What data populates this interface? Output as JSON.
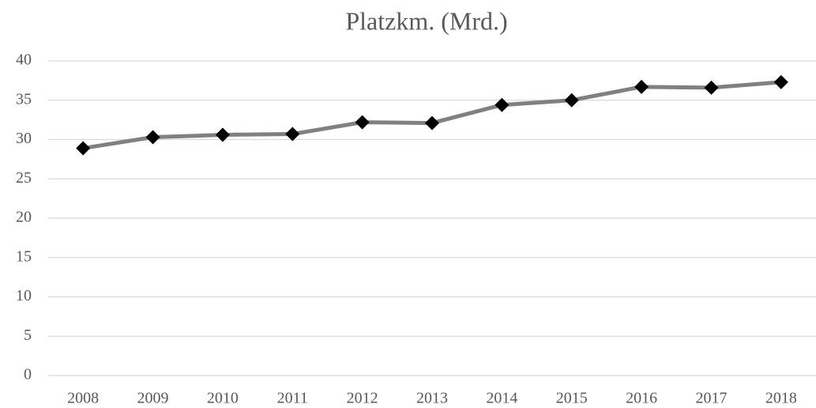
{
  "chart_data": {
    "type": "line",
    "title": "Platzkm. (Mrd.)",
    "categories": [
      "2008",
      "2009",
      "2010",
      "2011",
      "2012",
      "2013",
      "2014",
      "2015",
      "2016",
      "2017",
      "2018"
    ],
    "values": [
      28.9,
      30.3,
      30.6,
      30.7,
      32.2,
      32.1,
      34.4,
      35.0,
      36.7,
      36.6,
      37.3
    ],
    "color": "#808080",
    "marker_color": "#000000",
    "ylim": [
      0,
      40
    ],
    "yticks": [
      0,
      5,
      10,
      15,
      20,
      25,
      30,
      35,
      40
    ],
    "grid": true
  }
}
